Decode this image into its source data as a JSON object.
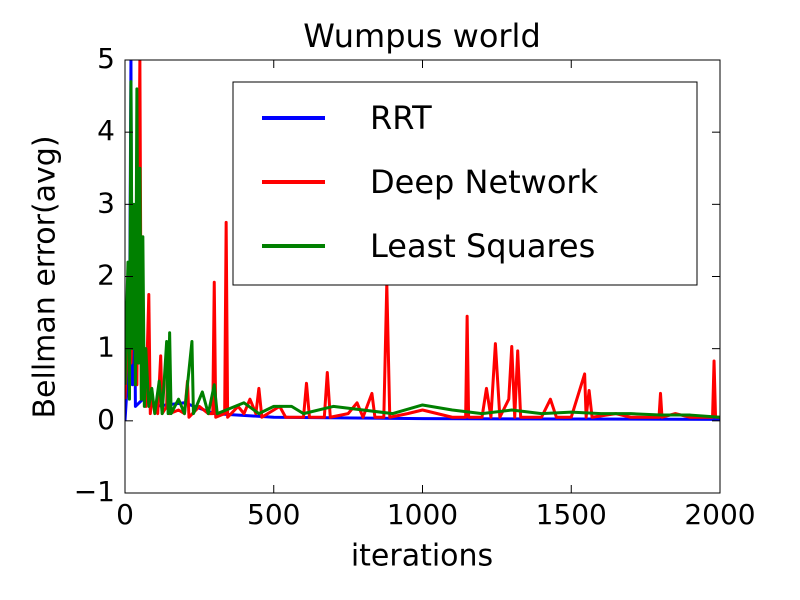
{
  "chart_data": {
    "type": "line",
    "title": "Wumpus world",
    "x_label": "iterations",
    "y_label": "Bellman error(avg)",
    "xlim": [
      0,
      2000
    ],
    "xticks": [
      0,
      500,
      1000,
      1500,
      2000
    ],
    "ylim": [
      -1,
      5
    ],
    "yticks": [
      {
        "value": -1,
        "label": "−1"
      },
      0,
      1,
      2,
      3,
      4,
      5
    ],
    "legend": "upper right",
    "series": [
      {
        "name": "RRT",
        "color": "#0000ff",
        "x": [
          0,
          15,
          20,
          22,
          25,
          30,
          35,
          60,
          100,
          200,
          300,
          500,
          1000,
          2000
        ],
        "values": [
          0,
          1.0,
          5.0,
          2.3,
          0.5,
          3.0,
          0.2,
          0.3,
          0.2,
          0.25,
          0.1,
          0.05,
          0.03,
          0.02
        ]
      },
      {
        "name": "Deep Network",
        "color": "#ff0000",
        "x": [
          0,
          10,
          20,
          30,
          40,
          50,
          55,
          60,
          70,
          80,
          85,
          90,
          110,
          120,
          125,
          140,
          145,
          150,
          180,
          200,
          210,
          215,
          250,
          280,
          295,
          300,
          305,
          335,
          340,
          345,
          380,
          400,
          420,
          440,
          450,
          460,
          500,
          520,
          540,
          600,
          610,
          620,
          670,
          680,
          690,
          750,
          780,
          800,
          830,
          840,
          870,
          880,
          890,
          950,
          1000,
          1050,
          1100,
          1145,
          1150,
          1155,
          1200,
          1215,
          1230,
          1245,
          1260,
          1290,
          1300,
          1310,
          1320,
          1330,
          1400,
          1430,
          1450,
          1500,
          1545,
          1550,
          1560,
          1570,
          1650,
          1700,
          1795,
          1800,
          1805,
          1850,
          1900,
          1975,
          1980,
          1985,
          2000
        ],
        "values": [
          0.3,
          1.5,
          0.8,
          2.0,
          0.5,
          5,
          0.3,
          1.2,
          0.2,
          1.75,
          0.1,
          0.3,
          0.1,
          0.9,
          0.1,
          0.2,
          1.0,
          0.1,
          0.15,
          0.1,
          0.55,
          0.05,
          0.2,
          0.1,
          0.1,
          1.92,
          0.05,
          0.1,
          2.75,
          0.05,
          0.2,
          0.1,
          0.3,
          0.1,
          0.45,
          0.05,
          0.15,
          0.2,
          0.05,
          0.05,
          0.52,
          0.05,
          0.05,
          0.67,
          0.05,
          0.1,
          0.25,
          0.05,
          0.38,
          0.05,
          0.05,
          1.9,
          0.05,
          0.1,
          0.15,
          0.1,
          0.05,
          0.05,
          1.45,
          0.05,
          0.05,
          0.45,
          0.05,
          1.07,
          0.05,
          0.3,
          1.03,
          0.05,
          0.97,
          0.05,
          0.05,
          0.3,
          0.05,
          0.05,
          0.65,
          0.05,
          0.42,
          0.05,
          0.1,
          0.05,
          0.05,
          0.38,
          0.05,
          0.1,
          0.05,
          0.05,
          0.83,
          0.05,
          0.05
        ]
      },
      {
        "name": "Least Squares",
        "color": "#008000",
        "x": [
          0,
          10,
          15,
          20,
          25,
          30,
          35,
          40,
          45,
          50,
          55,
          60,
          65,
          70,
          80,
          90,
          100,
          115,
          125,
          140,
          145,
          150,
          155,
          180,
          200,
          225,
          230,
          260,
          280,
          300,
          310,
          400,
          450,
          500,
          560,
          600,
          700,
          800,
          900,
          1000,
          1100,
          1200,
          1300,
          1400,
          1500,
          1600,
          1700,
          1800,
          1900,
          2000
        ],
        "values": [
          0.5,
          2.2,
          0.3,
          4.7,
          1.0,
          3.0,
          0.5,
          4.6,
          0.8,
          3.5,
          0.3,
          2.55,
          0.2,
          1.0,
          0.2,
          0.45,
          0.1,
          0.55,
          0.1,
          1.1,
          0.1,
          1.22,
          0.1,
          0.3,
          0.1,
          1.1,
          0.1,
          0.4,
          0.1,
          0.5,
          0.1,
          0.25,
          0.1,
          0.2,
          0.2,
          0.1,
          0.2,
          0.15,
          0.1,
          0.22,
          0.15,
          0.1,
          0.15,
          0.1,
          0.12,
          0.1,
          0.1,
          0.08,
          0.08,
          0.05
        ]
      }
    ]
  }
}
